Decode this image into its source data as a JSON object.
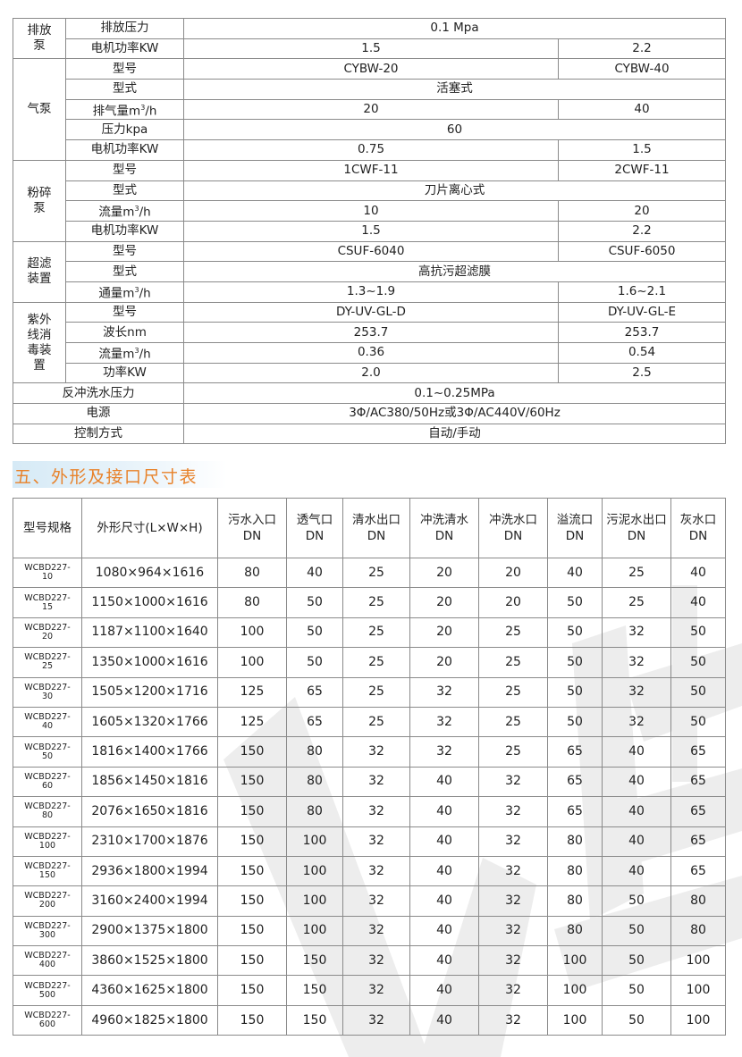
{
  "spec_table": {
    "groups": [
      {
        "name": "排放泵",
        "rows": [
          {
            "label": "排放压力",
            "values": [
              "0.1 Mpa"
            ]
          },
          {
            "label": "电机功率KW",
            "values": [
              "1.5",
              "2.2"
            ]
          }
        ]
      },
      {
        "name": "气泵",
        "rows": [
          {
            "label": "型号",
            "values": [
              "CYBW-20",
              "CYBW-40"
            ]
          },
          {
            "label": "型式",
            "values": [
              "活塞式"
            ]
          },
          {
            "label": "排气量m³/h",
            "values": [
              "20",
              "40"
            ]
          },
          {
            "label": "压力kpa",
            "values": [
              "60"
            ]
          },
          {
            "label": "电机功率KW",
            "values": [
              "0.75",
              "1.5"
            ]
          }
        ]
      },
      {
        "name": "粉碎泵",
        "rows": [
          {
            "label": "型号",
            "values": [
              "1CWF-11",
              "2CWF-11"
            ]
          },
          {
            "label": "型式",
            "values": [
              "刀片离心式"
            ]
          },
          {
            "label": "流量m³/h",
            "values": [
              "10",
              "20"
            ]
          },
          {
            "label": "电机功率KW",
            "values": [
              "1.5",
              "2.2"
            ]
          }
        ]
      },
      {
        "name": "超滤装置",
        "rows": [
          {
            "label": "型号",
            "values": [
              "CSUF-6040",
              "CSUF-6050"
            ]
          },
          {
            "label": "型式",
            "values": [
              "高抗污超滤膜"
            ]
          },
          {
            "label": "通量m³/h",
            "values": [
              "1.3~1.9",
              "1.6~2.1"
            ]
          }
        ]
      },
      {
        "name": "紫外线消毒装置",
        "rows": [
          {
            "label": "型号",
            "values": [
              "DY-UV-GL-D",
              "DY-UV-GL-E"
            ]
          },
          {
            "label": "波长nm",
            "values": [
              "253.7",
              "253.7"
            ]
          },
          {
            "label": "流量m³/h",
            "values": [
              "0.36",
              "0.54"
            ]
          },
          {
            "label": "功率KW",
            "values": [
              "2.0",
              "2.5"
            ]
          }
        ]
      }
    ],
    "footer_rows": [
      {
        "label": "反冲洗水压力",
        "value": "0.1~0.25MPa"
      },
      {
        "label": "电源",
        "value": "3Φ/AC380/50Hz或3Φ/AC440V/60Hz"
      },
      {
        "label": "控制方式",
        "value": "自动/手动"
      }
    ]
  },
  "section_heading": "五、外形及接口尺寸表",
  "accent_color": "#e8822a",
  "dim_table": {
    "headers": [
      [
        "型号规格"
      ],
      [
        "外形尺寸(L×W×H)"
      ],
      [
        "污水入口",
        "DN"
      ],
      [
        "透气口",
        "DN"
      ],
      [
        "清水出口",
        "DN"
      ],
      [
        "冲洗清水",
        "DN"
      ],
      [
        "冲洗水口",
        "DN"
      ],
      [
        "溢流口",
        "DN"
      ],
      [
        "污泥水出口",
        "DN"
      ],
      [
        "灰水口",
        "DN"
      ]
    ],
    "rows": [
      [
        [
          "WCBD227-",
          "10"
        ],
        "1080×964×1616",
        "80",
        "40",
        "25",
        "20",
        "20",
        "40",
        "25",
        "40"
      ],
      [
        [
          "WCBD227-",
          "15"
        ],
        "1150×1000×1616",
        "80",
        "50",
        "25",
        "20",
        "20",
        "50",
        "25",
        "40"
      ],
      [
        [
          "WCBD227-",
          "20"
        ],
        "1187×1100×1640",
        "100",
        "50",
        "25",
        "20",
        "25",
        "50",
        "32",
        "50"
      ],
      [
        [
          "WCBD227-",
          "25"
        ],
        "1350×1000×1616",
        "100",
        "50",
        "25",
        "20",
        "25",
        "50",
        "32",
        "50"
      ],
      [
        [
          "WCBD227-",
          "30"
        ],
        "1505×1200×1716",
        "125",
        "65",
        "25",
        "32",
        "25",
        "50",
        "32",
        "50"
      ],
      [
        [
          "WCBD227-",
          "40"
        ],
        "1605×1320×1766",
        "125",
        "65",
        "25",
        "32",
        "25",
        "50",
        "32",
        "50"
      ],
      [
        [
          "WCBD227-",
          "50"
        ],
        "1816×1400×1766",
        "150",
        "80",
        "32",
        "32",
        "25",
        "65",
        "40",
        "65"
      ],
      [
        [
          "WCBD227-",
          "60"
        ],
        "1856×1450×1816",
        "150",
        "80",
        "32",
        "40",
        "32",
        "65",
        "40",
        "65"
      ],
      [
        [
          "WCBD227-",
          "80"
        ],
        "2076×1650×1816",
        "150",
        "80",
        "32",
        "40",
        "32",
        "65",
        "40",
        "65"
      ],
      [
        [
          "WCBD227-",
          "100"
        ],
        "2310×1700×1876",
        "150",
        "100",
        "32",
        "40",
        "32",
        "80",
        "40",
        "65"
      ],
      [
        [
          "WCBD227-",
          "150"
        ],
        "2936×1800×1994",
        "150",
        "100",
        "32",
        "40",
        "32",
        "80",
        "40",
        "65"
      ],
      [
        [
          "WCBD227-",
          "200"
        ],
        "3160×2400×1994",
        "150",
        "100",
        "32",
        "40",
        "32",
        "80",
        "50",
        "80"
      ],
      [
        [
          "WCBD227-",
          "300"
        ],
        "2900×1375×1800",
        "150",
        "100",
        "32",
        "40",
        "32",
        "80",
        "50",
        "80"
      ],
      [
        [
          "WCBD227-",
          "400"
        ],
        "3860×1525×1800",
        "150",
        "150",
        "32",
        "40",
        "32",
        "100",
        "50",
        "100"
      ],
      [
        [
          "WCBD227-",
          "500"
        ],
        "4360×1625×1800",
        "150",
        "150",
        "32",
        "40",
        "32",
        "100",
        "50",
        "100"
      ],
      [
        [
          "WCBD227-",
          "600"
        ],
        "4960×1825×1800",
        "150",
        "150",
        "32",
        "40",
        "32",
        "100",
        "50",
        "100"
      ]
    ]
  }
}
